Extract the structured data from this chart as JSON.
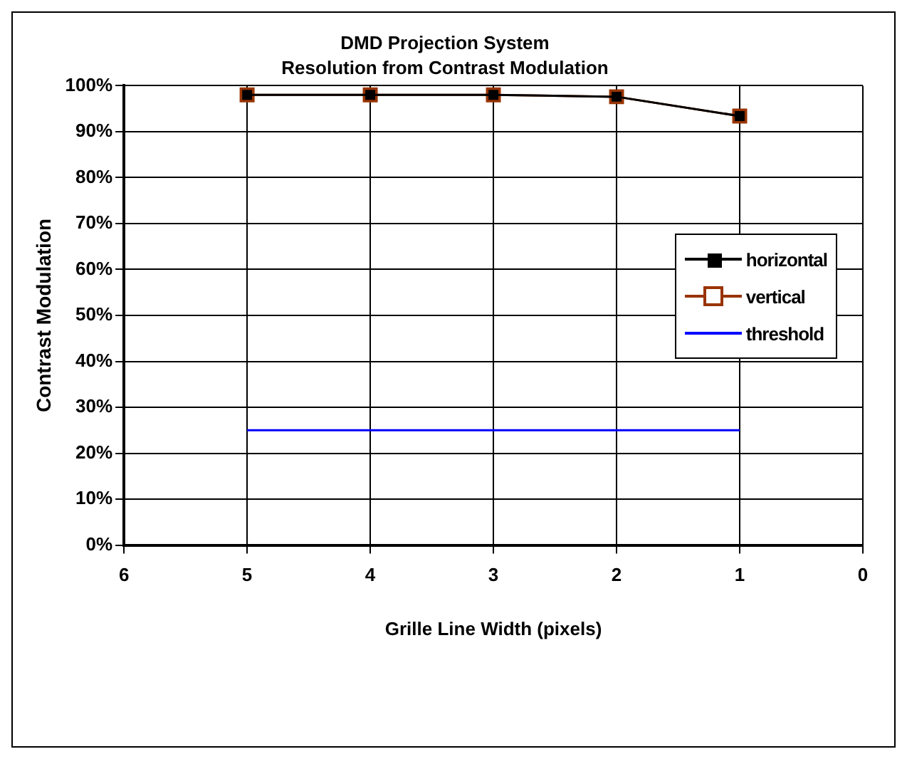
{
  "chart_data": {
    "type": "line",
    "title": "DMD Projection System",
    "subtitle": "Resolution from Contrast Modulation",
    "xlabel": "Grille Line Width (pixels)",
    "ylabel": "Contrast Modulation",
    "x": [
      5,
      4,
      3,
      2,
      1
    ],
    "series": [
      {
        "name": "horizontal",
        "color": "#000000",
        "marker": "square",
        "values": [
          98,
          98,
          98,
          97.6,
          93.4
        ]
      },
      {
        "name": "vertical",
        "color": "#993300",
        "marker": "square",
        "values": [
          98,
          98,
          98,
          97.6,
          93.4
        ]
      },
      {
        "name": "threshold",
        "color": "#0000ff",
        "marker": "none",
        "x": [
          5,
          1
        ],
        "values": [
          25,
          25
        ]
      }
    ],
    "xlim": [
      6,
      0
    ],
    "xticks": [
      6,
      5,
      4,
      3,
      2,
      1,
      0
    ],
    "ylim": [
      0,
      100
    ],
    "yticks": [
      {
        "value": 0,
        "label": "0%"
      },
      {
        "value": 10,
        "label": "10%"
      },
      {
        "value": 20,
        "label": "20%"
      },
      {
        "value": 30,
        "label": "30%"
      },
      {
        "value": 40,
        "label": "40%"
      },
      {
        "value": 50,
        "label": "50%"
      },
      {
        "value": 60,
        "label": "60%"
      },
      {
        "value": 70,
        "label": "70%"
      },
      {
        "value": 80,
        "label": "80%"
      },
      {
        "value": 90,
        "label": "90%"
      },
      {
        "value": 100,
        "label": "100%"
      }
    ],
    "grid": true,
    "legend": "right",
    "line_style": "solid"
  }
}
